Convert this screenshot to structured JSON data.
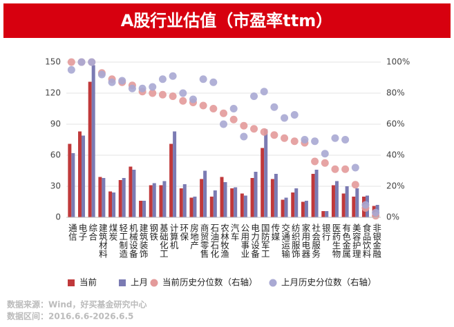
{
  "chart_data": {
    "type": "bar",
    "title": "A股行业估值（市盈率ttm）",
    "categories": [
      "通信",
      "电子",
      "综合",
      "建筑材料",
      "煤炭",
      "轻工制造",
      "机械设备",
      "建筑装饰",
      "钢铁",
      "基础化工",
      "计算机",
      "环保",
      "房地产",
      "商贸零售",
      "石油石化",
      "农林牧渔",
      "汽车",
      "公用事业",
      "电力设备",
      "国防军工",
      "传媒",
      "交通运输",
      "纺织服饰",
      "家用电器",
      "社会服务",
      "银行",
      "医药生物",
      "有色金属",
      "美容护理",
      "食品饮料",
      "非银金融"
    ],
    "series": [
      {
        "name": "当前",
        "color": "#c0393b",
        "values": [
          71,
          83,
          131,
          39,
          25,
          36,
          49,
          16,
          31,
          31,
          71,
          28,
          19,
          37,
          20,
          39,
          28,
          23,
          38,
          67,
          37,
          17,
          24,
          15,
          42,
          6,
          31,
          23,
          20,
          20,
          11
        ]
      },
      {
        "name": "上月",
        "color": "#7b7bb3",
        "values": [
          62,
          79,
          147,
          38,
          24,
          38,
          46,
          16,
          33,
          35,
          83,
          32,
          20,
          45,
          26,
          34,
          29,
          21,
          44,
          85,
          42,
          19,
          28,
          16,
          46,
          6,
          35,
          30,
          28,
          21,
          12
        ]
      },
      {
        "name": "当前历史分位数（右轴）",
        "color": "#e39a9a",
        "axis": "y2",
        "type": "scatter",
        "values": [
          100,
          100,
          100,
          93,
          89,
          87,
          85,
          81,
          80,
          79,
          78,
          75,
          74,
          72,
          70,
          67,
          63,
          59,
          57,
          55,
          53,
          51,
          49,
          48,
          36,
          35,
          31,
          31,
          21,
          6,
          1
        ]
      },
      {
        "name": "上月历史分位数（右轴）",
        "color": "#a9a9d3",
        "axis": "y2",
        "type": "scatter",
        "values": [
          95,
          100,
          100,
          92,
          87,
          88,
          83,
          83,
          84,
          89,
          91,
          80,
          76,
          89,
          87,
          60,
          70,
          52,
          78,
          81,
          71,
          64,
          66,
          50,
          49,
          41,
          51,
          50,
          32,
          8,
          3
        ]
      }
    ],
    "ylim": [
      0,
      150
    ],
    "yticks": [
      0,
      30,
      60,
      90,
      120,
      150
    ],
    "y2lim": [
      0,
      100
    ],
    "y2ticks": [
      {
        "value": 0,
        "label": "0%"
      },
      {
        "value": 20,
        "label": "20%"
      },
      {
        "value": 40,
        "label": "40%"
      },
      {
        "value": 60,
        "label": "60%"
      },
      {
        "value": 80,
        "label": "80%"
      },
      {
        "value": 100,
        "label": "100%"
      }
    ],
    "source": "数据来源：Wind，好买基金研究中心",
    "period": "数据区间：2016.6.6-2026.6.5"
  }
}
